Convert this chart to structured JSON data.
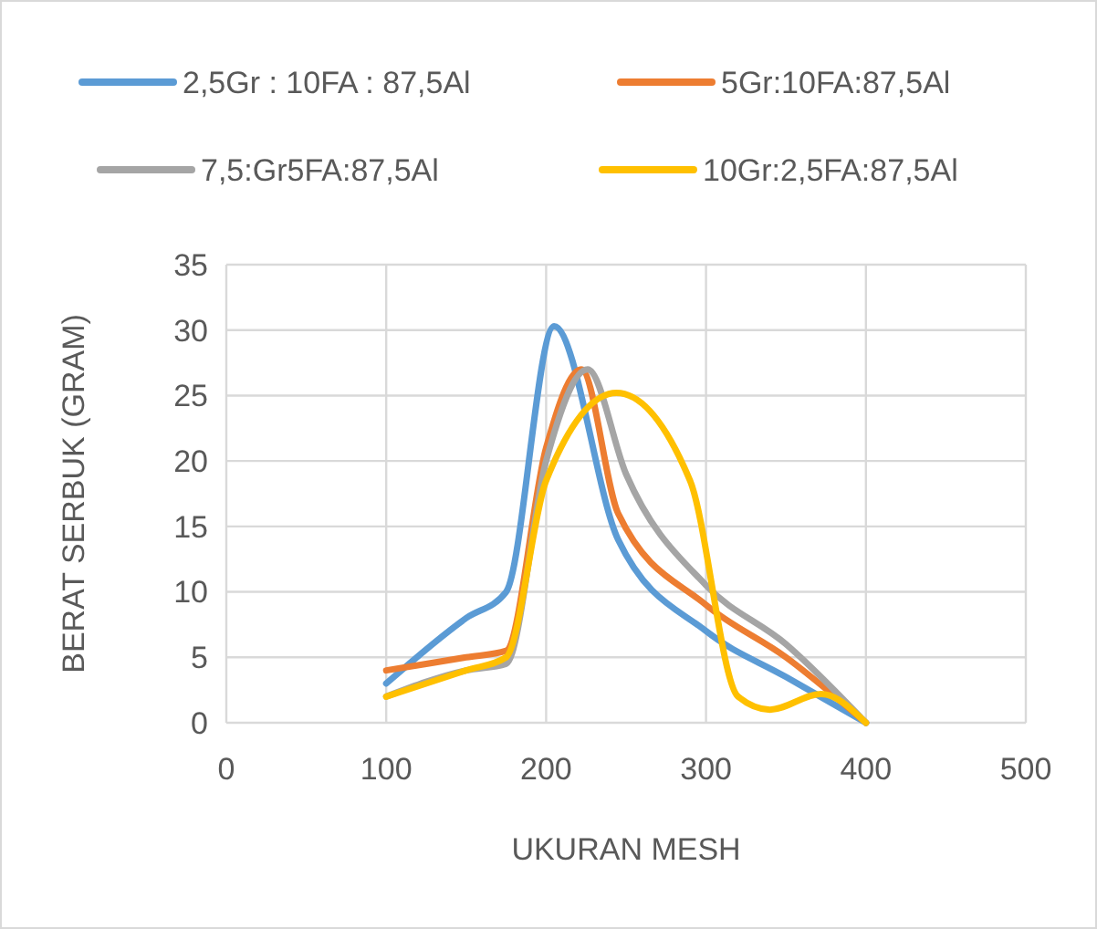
{
  "chart_data": {
    "type": "line",
    "xlabel": "UKURAN MESH",
    "ylabel": "BERAT SERBUK (GRAM)",
    "xlim": [
      0,
      500
    ],
    "xticks": [
      0,
      100,
      200,
      300,
      400,
      500
    ],
    "ylim": [
      0,
      35
    ],
    "yticks": [
      0,
      5,
      10,
      15,
      20,
      25,
      30,
      35
    ],
    "grid": true,
    "legend": "top",
    "marker": "none",
    "line_style": "solid",
    "series": [
      {
        "name": "2,5Gr : 10FA : 87,5Al",
        "color": "#5b9bd5",
        "x": [
          100,
          150,
          175,
          205,
          245,
          300,
          350,
          400
        ],
        "values": [
          3,
          8,
          10,
          30.3,
          14,
          7,
          3.5,
          0
        ]
      },
      {
        "name": "5Gr:10FA:87,5Al",
        "color": "#ed7d31",
        "x": [
          100,
          150,
          175,
          200,
          222,
          245,
          300,
          350,
          400
        ],
        "values": [
          4,
          5,
          5.5,
          21,
          27,
          16,
          9,
          5,
          0
        ]
      },
      {
        "name": "7,5:Gr5FA:87,5Al",
        "color": "#a5a5a5",
        "x": [
          100,
          150,
          175,
          200,
          226,
          250,
          300,
          350,
          400
        ],
        "values": [
          2,
          4,
          4.5,
          20,
          27,
          19,
          10.5,
          6,
          0
        ]
      },
      {
        "name": "10Gr:2,5FA:87,5Al",
        "color": "#ffc000",
        "x": [
          100,
          150,
          175,
          200,
          244,
          290,
          320,
          340,
          372,
          400
        ],
        "values": [
          2,
          4,
          5,
          18.5,
          25.2,
          18.5,
          2,
          1,
          2.2,
          0
        ]
      }
    ]
  }
}
